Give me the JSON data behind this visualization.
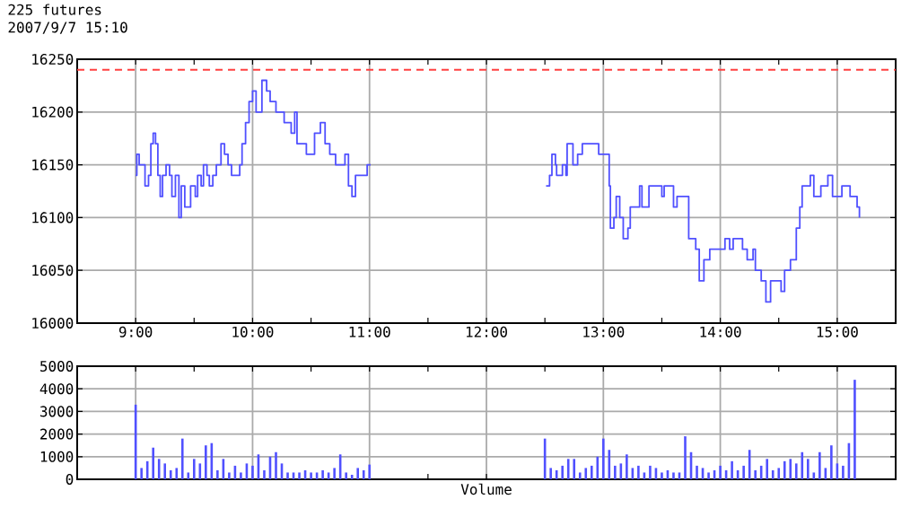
{
  "chart_data": [
    {
      "type": "step",
      "title": "225 futures",
      "subtitle": "2007/9/7 15:10",
      "grid": true,
      "xlim": [
        8.5,
        15.5
      ],
      "ylim": [
        16000,
        16250
      ],
      "xticks": [
        {
          "value": 9,
          "label": "9:00"
        },
        {
          "value": 9.5,
          "label": null
        },
        {
          "value": 10,
          "label": "10:00"
        },
        {
          "value": 10.5,
          "label": null
        },
        {
          "value": 11,
          "label": "11:00"
        },
        {
          "value": 11.5,
          "label": null
        },
        {
          "value": 12,
          "label": "12:00"
        },
        {
          "value": 12.5,
          "label": null
        },
        {
          "value": 13,
          "label": "13:00"
        },
        {
          "value": 13.5,
          "label": null
        },
        {
          "value": 14,
          "label": "14:00"
        },
        {
          "value": 14.5,
          "label": null
        },
        {
          "value": 15,
          "label": "15:00"
        }
      ],
      "yticks": [
        16000,
        16050,
        16100,
        16150,
        16200,
        16250
      ],
      "ref_lines": [
        {
          "axis": "y",
          "value": 16240,
          "color": "#ff4040",
          "line_style": "dashed"
        }
      ],
      "series": [
        {
          "color": "#5050ff",
          "x": [
            9.0,
            9.01,
            9.03,
            9.08,
            9.11,
            9.13,
            9.15,
            9.17,
            9.19,
            9.21,
            9.23,
            9.26,
            9.29,
            9.31,
            9.34,
            9.37,
            9.39,
            9.42,
            9.47,
            9.51,
            9.53,
            9.56,
            9.58,
            9.61,
            9.63,
            9.66,
            9.69,
            9.73,
            9.76,
            9.79,
            9.82,
            9.89,
            9.91,
            9.94,
            9.97,
            10.0,
            10.03,
            10.08,
            10.12,
            10.15,
            10.2,
            10.27,
            10.33,
            10.36,
            10.38,
            10.46,
            10.53,
            10.58,
            10.62,
            10.66,
            10.71,
            10.79,
            10.82,
            10.85,
            10.88,
            10.98,
            11.01,
            11.5,
            12.51,
            12.54,
            12.56,
            12.59,
            12.6,
            12.65,
            12.68,
            12.69,
            12.74,
            12.78,
            12.82,
            12.96,
            13.05,
            13.06,
            13.09,
            13.11,
            13.14,
            13.17,
            13.21,
            13.23,
            13.31,
            13.33,
            13.39,
            13.5,
            13.52,
            13.6,
            13.63,
            13.73,
            13.79,
            13.82,
            13.86,
            13.91,
            14.04,
            14.08,
            14.11,
            14.19,
            14.23,
            14.28,
            14.3,
            14.35,
            14.39,
            14.43,
            14.52,
            14.55,
            14.6,
            14.65,
            14.68,
            14.7,
            14.77,
            14.8,
            14.86,
            14.92,
            14.96,
            15.04,
            15.11,
            15.17,
            15.19
          ],
          "values": [
            16140,
            16160,
            16150,
            16130,
            16140,
            16170,
            16180,
            16170,
            16140,
            16120,
            16140,
            16150,
            16140,
            16120,
            16140,
            16100,
            16130,
            16110,
            16130,
            16120,
            16140,
            16130,
            16150,
            16140,
            16130,
            16140,
            16150,
            16170,
            16160,
            16150,
            16140,
            16150,
            16170,
            16190,
            16210,
            16220,
            16200,
            16230,
            16220,
            16210,
            16200,
            16190,
            16180,
            16200,
            16170,
            16160,
            16180,
            16190,
            16170,
            16160,
            16150,
            16160,
            16130,
            16120,
            16140,
            16150,
            16150,
            null,
            16130,
            16140,
            16160,
            16150,
            16140,
            16150,
            16140,
            16170,
            16150,
            16160,
            16170,
            16160,
            16130,
            16090,
            16100,
            16120,
            16100,
            16080,
            16090,
            16110,
            16130,
            16110,
            16130,
            16120,
            16130,
            16110,
            16120,
            16080,
            16070,
            16040,
            16060,
            16070,
            16080,
            16070,
            16080,
            16070,
            16060,
            16070,
            16050,
            16040,
            16020,
            16040,
            16030,
            16050,
            16060,
            16090,
            16110,
            16130,
            16140,
            16120,
            16130,
            16140,
            16120,
            16130,
            16120,
            16110,
            16100
          ]
        }
      ]
    },
    {
      "type": "bar",
      "xlabel": "Volume",
      "grid": true,
      "tick_labels": "y",
      "xlim": [
        8.5,
        15.5
      ],
      "ylim": [
        0,
        5000
      ],
      "xticks": [
        {
          "value": 9,
          "label": null
        },
        {
          "value": 9.5,
          "label": null
        },
        {
          "value": 10,
          "label": null
        },
        {
          "value": 10.5,
          "label": null
        },
        {
          "value": 11,
          "label": null
        },
        {
          "value": 11.5,
          "label": null
        },
        {
          "value": 12,
          "label": null
        },
        {
          "value": 12.5,
          "label": null
        },
        {
          "value": 13,
          "label": null
        },
        {
          "value": 13.5,
          "label": null
        },
        {
          "value": 14,
          "label": null
        },
        {
          "value": 14.5,
          "label": null
        },
        {
          "value": 15,
          "label": null
        }
      ],
      "yticks": [
        0,
        1000,
        2000,
        3000,
        4000,
        5000
      ],
      "series": [
        {
          "color": "#5050ff",
          "x": [
            9.0,
            9.05,
            9.1,
            9.15,
            9.2,
            9.25,
            9.3,
            9.35,
            9.4,
            9.45,
            9.5,
            9.55,
            9.6,
            9.65,
            9.7,
            9.75,
            9.8,
            9.85,
            9.9,
            9.95,
            10.0,
            10.05,
            10.1,
            10.15,
            10.2,
            10.25,
            10.3,
            10.35,
            10.4,
            10.45,
            10.5,
            10.55,
            10.6,
            10.65,
            10.7,
            10.75,
            10.8,
            10.85,
            10.9,
            10.95,
            11.0,
            12.5,
            12.55,
            12.6,
            12.65,
            12.7,
            12.75,
            12.8,
            12.85,
            12.9,
            12.95,
            13.0,
            13.05,
            13.1,
            13.15,
            13.2,
            13.25,
            13.3,
            13.35,
            13.4,
            13.45,
            13.5,
            13.55,
            13.6,
            13.65,
            13.7,
            13.75,
            13.8,
            13.85,
            13.9,
            13.95,
            14.0,
            14.05,
            14.1,
            14.15,
            14.2,
            14.25,
            14.3,
            14.35,
            14.4,
            14.45,
            14.5,
            14.55,
            14.6,
            14.65,
            14.7,
            14.75,
            14.8,
            14.85,
            14.9,
            14.95,
            15.0,
            15.05,
            15.1,
            15.15
          ],
          "values": [
            3300,
            500,
            800,
            1400,
            900,
            700,
            400,
            500,
            1800,
            300,
            900,
            700,
            1500,
            1600,
            400,
            900,
            300,
            600,
            300,
            700,
            600,
            1100,
            400,
            1000,
            1200,
            700,
            300,
            300,
            300,
            400,
            300,
            300,
            400,
            300,
            500,
            1100,
            300,
            200,
            500,
            400,
            650,
            1800,
            500,
            400,
            600,
            900,
            900,
            300,
            500,
            600,
            1000,
            1800,
            1300,
            600,
            700,
            1100,
            500,
            600,
            300,
            600,
            500,
            300,
            400,
            300,
            300,
            1900,
            1200,
            600,
            500,
            300,
            400,
            600,
            400,
            800,
            400,
            600,
            1300,
            400,
            600,
            900,
            400,
            500,
            800,
            900,
            700,
            1200,
            900,
            300,
            1200,
            500,
            1500,
            700,
            600,
            1600,
            4400
          ]
        }
      ]
    }
  ]
}
